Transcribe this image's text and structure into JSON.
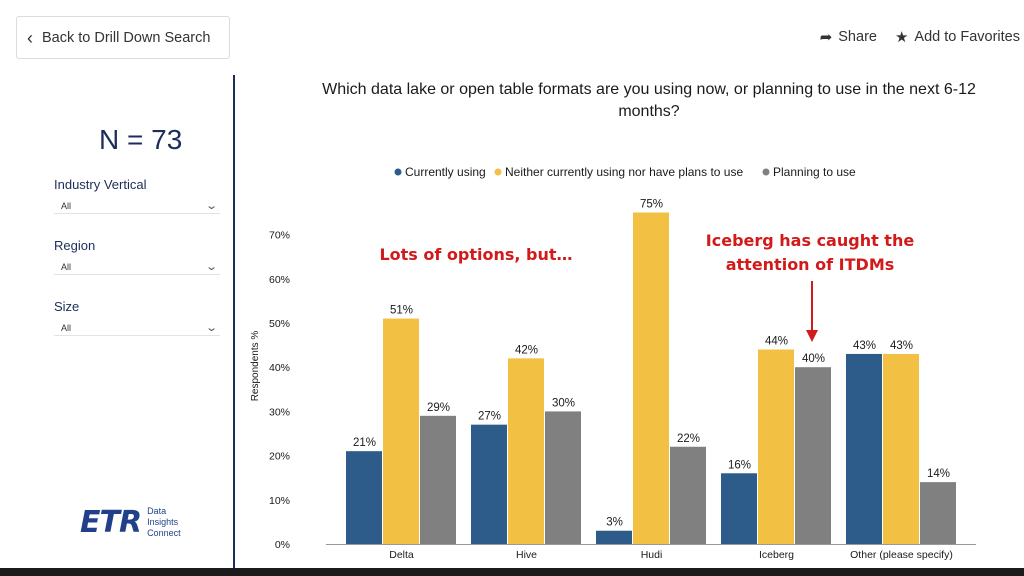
{
  "nav": {
    "back_label": "Back to Drill Down Search",
    "share_label": "Share",
    "favorites_label": "Add to Favorites"
  },
  "sidebar": {
    "n_label": "N = 73",
    "filters": [
      {
        "label": "Industry Vertical",
        "value": "All"
      },
      {
        "label": "Region",
        "value": "All"
      },
      {
        "label": "Size",
        "value": "All"
      }
    ],
    "logo": {
      "mark": "ETR",
      "line1": "Data",
      "line2": "Insights",
      "line3": "Connect"
    }
  },
  "colors": {
    "currently": "#2e5c8a",
    "neither": "#f2c043",
    "planning": "#808080",
    "annotation": "#d21a1a"
  },
  "chart_data": {
    "type": "bar",
    "title": "Which data lake or open table formats are you using now, or planning to use in the next 6-12 months?",
    "ylabel": "Respondents %",
    "categories": [
      "Delta",
      "Hive",
      "Hudi",
      "Iceberg",
      "Other (please specify)"
    ],
    "series": [
      {
        "name": "Currently using",
        "values": [
          21,
          27,
          3,
          16,
          43
        ]
      },
      {
        "name": "Neither currently using nor have plans to use",
        "values": [
          51,
          42,
          75,
          44,
          43
        ]
      },
      {
        "name": "Planning to use",
        "values": [
          29,
          30,
          22,
          40,
          14
        ]
      }
    ],
    "yticks": [
      "0%",
      "10%",
      "20%",
      "30%",
      "40%",
      "50%",
      "60%",
      "70%"
    ],
    "ylim": [
      0,
      80
    ],
    "legend_position": "top",
    "annotations": [
      {
        "text": "Lots of options, but…"
      },
      {
        "line1": "Iceberg has caught the",
        "line2": "attention of ITDMs"
      }
    ]
  }
}
